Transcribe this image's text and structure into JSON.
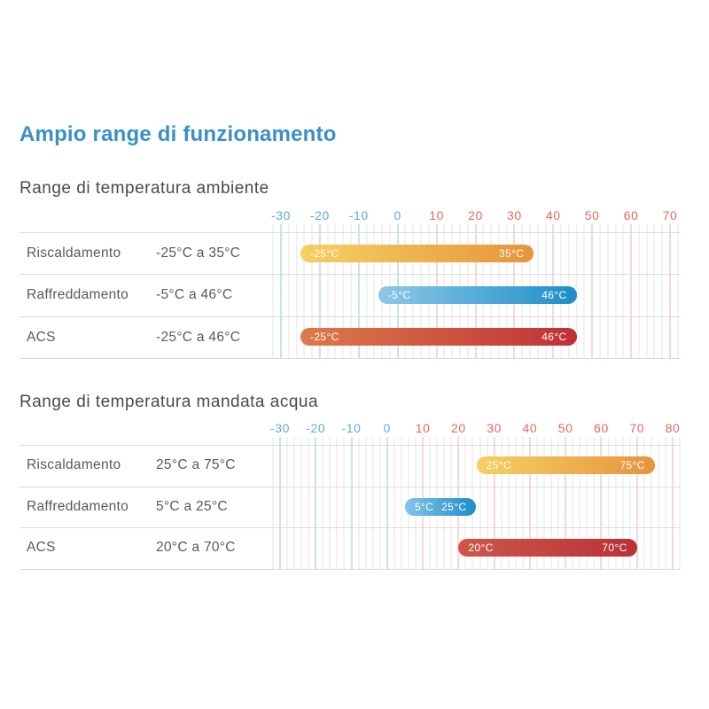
{
  "page": {
    "title": "Ampio range di funzionamento",
    "unit": "°C"
  },
  "colors": {
    "heading": "#3A8FC9",
    "section_title": "#4A4A4C",
    "row_text": "#58595B",
    "axis_label_negative": "#5FA9DA",
    "axis_label_positive": "#E4695C",
    "grid_major_negative": "#C6E3F3",
    "grid_major_positive": "#F7D8D3",
    "grid_minor": "#E4E4E4",
    "separator": "#DBDBDB",
    "bar_label_text": "#FFFFFF"
  },
  "chart_data": [
    {
      "type": "bar",
      "style": "horizontal-range-pill",
      "title": "Range di temperatura ambiente",
      "unit": "°C",
      "axis": {
        "min": -30,
        "max": 70,
        "major_step": 10,
        "minor_step": 2,
        "ticks": [
          -30,
          -20,
          -10,
          0,
          10,
          20,
          30,
          40,
          50,
          60,
          70
        ]
      },
      "rows": [
        {
          "label": "Riscaldamento",
          "range_text": "-25°C a 35°C",
          "start": -25,
          "end": 35,
          "start_label": "-25°C",
          "end_label": "35°C",
          "gradient": [
            "#F5D162",
            "#E6943D"
          ]
        },
        {
          "label": "Raffreddamento",
          "range_text": "-5°C a 46°C",
          "start": -5,
          "end": 46,
          "start_label": "-5°C",
          "end_label": "46°C",
          "gradient": [
            "#8EC8E8",
            "#1D8EC8"
          ]
        },
        {
          "label": "ACS",
          "range_text": "-25°C a 46°C",
          "start": -25,
          "end": 46,
          "start_label": "-25°C",
          "end_label": "46°C",
          "gradient": [
            "#DE7A49",
            "#BE3137"
          ]
        }
      ]
    },
    {
      "type": "bar",
      "style": "horizontal-range-pill",
      "title": "Range di temperatura mandata acqua",
      "unit": "°C",
      "axis": {
        "min": -30,
        "max": 80,
        "major_step": 10,
        "minor_step": 2,
        "ticks": [
          -30,
          -20,
          -10,
          0,
          10,
          20,
          30,
          40,
          50,
          60,
          70,
          80
        ]
      },
      "rows": [
        {
          "label": "Riscaldamento",
          "range_text": "25°C a 75°C",
          "start": 25,
          "end": 75,
          "start_label": "25°C",
          "end_label": "75°C",
          "gradient": [
            "#F5D162",
            "#E6943D"
          ]
        },
        {
          "label": "Raffreddamento",
          "range_text": "5°C a 25°C",
          "start": 5,
          "end": 25,
          "start_label": "5°C",
          "end_label": "25°C",
          "gradient": [
            "#82C4E7",
            "#1D8EC8"
          ]
        },
        {
          "label": "ACS",
          "range_text": "20°C a 70°C",
          "start": 20,
          "end": 70,
          "start_label": "20°C",
          "end_label": "70°C",
          "gradient": [
            "#CE574A",
            "#B93138"
          ]
        }
      ]
    }
  ]
}
